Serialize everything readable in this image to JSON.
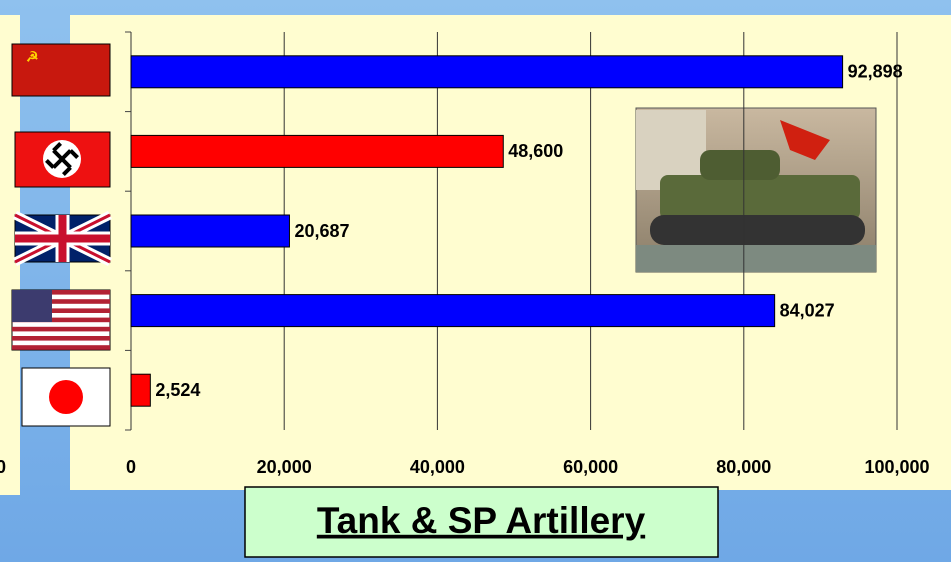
{
  "chart_data": {
    "type": "barh",
    "title": "Tank & SP Artillery",
    "partial_label": "0",
    "categories": [
      null,
      null,
      null,
      null,
      null
    ],
    "values": [
      92898,
      48600,
      20687,
      84027,
      2524
    ],
    "value_labels": [
      "92,898",
      "48,600",
      "20,687",
      "84,027",
      "2,524"
    ],
    "colors": [
      "#0000ff",
      "#ff0000",
      "#0000ff",
      "#0000ff",
      "#ff0000"
    ],
    "xlim": [
      0,
      100000
    ],
    "xticks": [
      0,
      {
        "value": 20000,
        "label": "20,000"
      },
      {
        "value": 40000,
        "label": "40,000"
      },
      {
        "value": 60000,
        "label": "60,000"
      },
      {
        "value": 80000,
        "label": "80,000"
      },
      {
        "value": 100000,
        "label": "100,000"
      }
    ],
    "grid": true
  }
}
